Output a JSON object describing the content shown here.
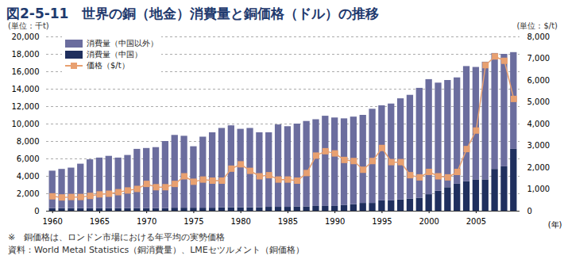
{
  "chart_data": {
    "type": "bar",
    "title": "図2-5-11　世界の銅（地金）消費量と銅価格（ドル）の推移",
    "ylabel": "(単位：千t)",
    "y2label": "(単位：$/t)",
    "xlabel": "(年)",
    "notes": [
      "※　銅価格は、ロンドン市場における年平均の実勢価格",
      "資料：World Metal Statistics（銅消費量）、LMEセツルメント（銅価格）"
    ],
    "stacked": true,
    "grid": true,
    "legend": "top-left",
    "categories": [
      1960,
      1961,
      1962,
      1963,
      1964,
      1965,
      1966,
      1967,
      1968,
      1969,
      1970,
      1971,
      1972,
      1973,
      1974,
      1975,
      1976,
      1977,
      1978,
      1979,
      1980,
      1981,
      1982,
      1983,
      1984,
      1985,
      1986,
      1987,
      1988,
      1989,
      1990,
      1991,
      1992,
      1993,
      1994,
      1995,
      1996,
      1997,
      1998,
      1999,
      2000,
      2001,
      2002,
      2003,
      2004,
      2005,
      2006,
      2007,
      2008,
      2009
    ],
    "xticks": [
      1960,
      1965,
      1970,
      1975,
      1980,
      1985,
      1990,
      1995,
      2000,
      2005
    ],
    "ylim": [
      0,
      20000
    ],
    "yticks": [
      0,
      {
        "value": 2000,
        "label": "2,000"
      },
      {
        "value": 4000,
        "label": "4,000"
      },
      {
        "value": 6000,
        "label": "6,000"
      },
      {
        "value": 8000,
        "label": "8,000"
      },
      {
        "value": 10000,
        "label": "10,000"
      },
      {
        "value": 12000,
        "label": "12,000"
      },
      {
        "value": 14000,
        "label": "14,000"
      },
      {
        "value": 16000,
        "label": "16,000"
      },
      {
        "value": 18000,
        "label": "18,000"
      },
      {
        "value": 20000,
        "label": "20,000"
      }
    ],
    "y2lim": [
      0,
      8000
    ],
    "y2ticks": [
      0,
      {
        "value": 1000,
        "label": "1,000"
      },
      {
        "value": 2000,
        "label": "2,000"
      },
      {
        "value": 3000,
        "label": "3,000"
      },
      {
        "value": 4000,
        "label": "4,000"
      },
      {
        "value": 5000,
        "label": "5,000"
      },
      {
        "value": 6000,
        "label": "6,000"
      },
      {
        "value": 7000,
        "label": "7,000"
      },
      {
        "value": 8000,
        "label": "8,000"
      }
    ],
    "series": [
      {
        "name": "消費量（中国以外）",
        "type": "bar",
        "color": "#6b6d9e",
        "values": [
          4300,
          4500,
          4650,
          5100,
          5600,
          5800,
          6000,
          5800,
          6100,
          6800,
          6900,
          7000,
          7700,
          8350,
          8250,
          7050,
          8150,
          8650,
          9100,
          9400,
          9000,
          9100,
          8600,
          8550,
          9450,
          9250,
          9500,
          9800,
          9950,
          10350,
          10150,
          9950,
          10050,
          10100,
          10800,
          10900,
          11100,
          11600,
          11900,
          12600,
          13200,
          12400,
          12300,
          12200,
          13200,
          12900,
          13500,
          13300,
          12900,
          11100
        ]
      },
      {
        "name": "消費量（中国）",
        "type": "bar",
        "color": "#1f2f5e",
        "values": [
          300,
          300,
          300,
          300,
          300,
          300,
          300,
          300,
          300,
          300,
          300,
          300,
          300,
          350,
          350,
          350,
          350,
          350,
          400,
          400,
          400,
          400,
          400,
          450,
          450,
          450,
          500,
          500,
          550,
          550,
          550,
          650,
          750,
          900,
          900,
          1200,
          1200,
          1300,
          1400,
          1500,
          1900,
          2300,
          2700,
          3100,
          3400,
          3600,
          3600,
          4800,
          5100,
          7100
        ]
      },
      {
        "name": "価格（$/t）",
        "type": "line",
        "axis": "y2",
        "marker": "square",
        "color": "#e8a070",
        "values": [
          680,
          630,
          650,
          650,
          700,
          770,
          800,
          870,
          950,
          1020,
          1250,
          1100,
          1100,
          1250,
          1600,
          1350,
          1450,
          1400,
          1400,
          1950,
          2150,
          1850,
          1600,
          1650,
          1450,
          1450,
          1400,
          1750,
          2550,
          2750,
          2650,
          2350,
          2300,
          1900,
          2300,
          2900,
          2250,
          2250,
          1650,
          1550,
          1800,
          1600,
          1550,
          1800,
          2850,
          3700,
          6700,
          7100,
          6900,
          5150
        ]
      }
    ]
  }
}
